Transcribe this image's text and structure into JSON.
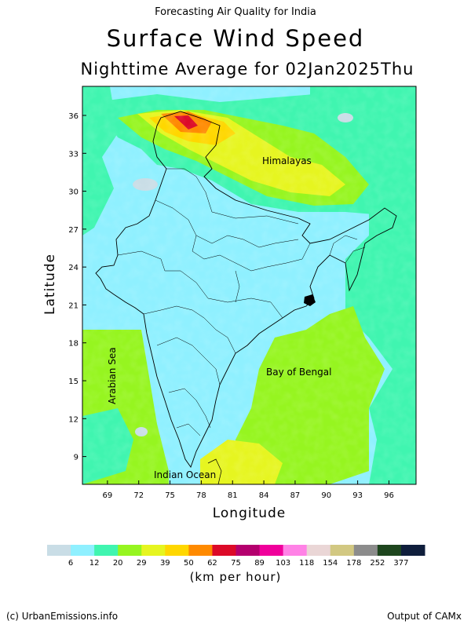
{
  "header": {
    "supertitle": "Forecasting Air Quality for India",
    "title": "Surface Wind Speed",
    "subtitle": "Nighttime Average for 02Jan2025Thu"
  },
  "axes": {
    "xlabel": "Longitude",
    "ylabel": "Latitude",
    "xticks": [
      "69",
      "72",
      "75",
      "78",
      "81",
      "84",
      "87",
      "90",
      "93",
      "96"
    ],
    "yticks": [
      "36",
      "33",
      "30",
      "27",
      "24",
      "21",
      "18",
      "15",
      "12",
      "9"
    ]
  },
  "labels": {
    "himalayas": "Himalayas",
    "arabian_sea": "Arabian Sea",
    "bay_of_bengal": "Bay of Bengal",
    "indian_ocean": "Indian Ocean"
  },
  "colorbar": {
    "units": "(km per hour)",
    "ticks": [
      "6",
      "12",
      "20",
      "29",
      "39",
      "50",
      "62",
      "75",
      "89",
      "103",
      "118",
      "154",
      "178",
      "252",
      "377"
    ],
    "colors": [
      "#c9dde6",
      "#8ff0ff",
      "#40f5b0",
      "#96f520",
      "#e6f520",
      "#ffd700",
      "#ff8a00",
      "#dc0a28",
      "#b4006e",
      "#f0009b",
      "#ff82e6",
      "#ead6d6",
      "#d2c882",
      "#8c8c8c",
      "#1e461e",
      "#0f1e3c"
    ]
  },
  "credits": {
    "left": "(c) UrbanEmissions.info",
    "right": "Output of CAMx"
  },
  "chart_data": {
    "type": "heatmap",
    "title": "Surface Wind Speed",
    "subtitle": "Nighttime Average for 02Jan2025Thu",
    "xlabel": "Longitude",
    "ylabel": "Latitude",
    "xlim": [
      66.6,
      98.6
    ],
    "ylim": [
      6.8,
      38.3
    ],
    "units": "km per hour",
    "legend_bins": [
      0,
      6,
      12,
      20,
      29,
      39,
      50,
      62,
      75,
      89,
      103,
      118,
      154,
      178,
      252,
      377
    ],
    "regions": [
      {
        "name": "Himalayas",
        "lon": 85.5,
        "lat": 32.8
      },
      {
        "name": "Arabian Sea",
        "lon": 69.5,
        "lat": 16.5
      },
      {
        "name": "Bay of Bengal",
        "lon": 87.0,
        "lat": 16.0
      },
      {
        "name": "Indian Ocean",
        "lon": 76.5,
        "lat": 7.8
      }
    ]
  }
}
